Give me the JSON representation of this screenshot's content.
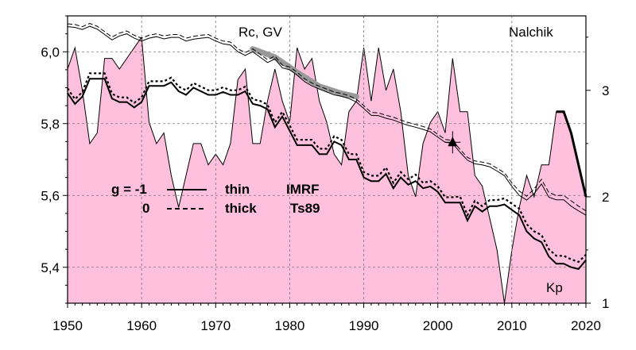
{
  "chart_data": {
    "type": "line",
    "annotations": {
      "station": "Nalchik",
      "rc_label": "Rc, GV",
      "kp_label": "Kp"
    },
    "legend": {
      "g_row1": "g  = -1",
      "g_row2": "0",
      "thin": "thin",
      "thick": "thick",
      "imrf": "IMRF",
      "ts89": "Ts89"
    },
    "x_axis": {
      "range": [
        1950,
        2020
      ],
      "ticks": [
        1950,
        1960,
        1970,
        1980,
        1990,
        2000,
        2010,
        2020
      ],
      "tick_labels": [
        "1950",
        "1960",
        "1970",
        "1980",
        "1990",
        "2000",
        "2010",
        "2020"
      ]
    },
    "y_axis_left": {
      "range": [
        5.3,
        6.1
      ],
      "ticks": [
        5.4,
        5.6,
        5.8,
        6.0
      ],
      "tick_labels": [
        "5,4",
        "5,6",
        "5,8",
        "6,0"
      ]
    },
    "y_axis_right": {
      "range": [
        1,
        3.7
      ],
      "ticks": [
        1,
        2,
        3
      ],
      "tick_labels": [
        "1",
        "2",
        "3"
      ]
    },
    "grid": true,
    "colors": {
      "kp_fill": "#ffc0dd",
      "kp_band": "#999999"
    },
    "series": [
      {
        "x": [
          1950,
          1951,
          1952,
          1953,
          1954,
          1955,
          1956,
          1957,
          1958,
          1959,
          1960,
          1961,
          1962,
          1963,
          1964,
          1965,
          1966,
          1967,
          1968,
          1969,
          1970,
          1971,
          1972,
          1973,
          1974,
          1975,
          1976,
          1977,
          1978,
          1979,
          1980,
          1981,
          1982,
          1983,
          1984,
          1985,
          1986,
          1987,
          1988,
          1989,
          1990,
          1991,
          1992,
          1993,
          1994,
          1995,
          1996,
          1997,
          1998,
          1999,
          2000,
          2001,
          2002,
          2003,
          2004,
          2005,
          2006,
          2007,
          2008,
          2009,
          2010,
          2011,
          2012,
          2013,
          2014,
          2015,
          2016,
          2017,
          2018,
          2019,
          2020
        ],
        "y": [
          6.07,
          6.068,
          6.062,
          6.071,
          6.063,
          6.048,
          6.033,
          6.044,
          6.05,
          6.038,
          6.03,
          6.038,
          6.042,
          6.036,
          6.04,
          6.04,
          6.03,
          6.035,
          6.038,
          6.04,
          6.03,
          6.022,
          6.019,
          6.0,
          5.99,
          6.0,
          5.985,
          5.97,
          5.98,
          5.955,
          5.95,
          5.935,
          5.917,
          5.905,
          5.896,
          5.888,
          5.88,
          5.876,
          5.87,
          5.86,
          5.842,
          5.823,
          5.822,
          5.815,
          5.81,
          5.802,
          5.795,
          5.79,
          5.784,
          5.777,
          5.762,
          5.748,
          5.745,
          5.72,
          5.698,
          5.688,
          5.685,
          5.68,
          5.668,
          5.655,
          5.625,
          5.6,
          5.587,
          5.605,
          5.632,
          5.595,
          5.588,
          5.588,
          5.57,
          5.557,
          5.545
        ]
      },
      {
        "x": [
          1950,
          1951,
          1952,
          1953,
          1954,
          1955,
          1956,
          1957,
          1958,
          1959,
          1960,
          1961,
          1962,
          1963,
          1964,
          1965,
          1966,
          1967,
          1968,
          1969,
          1970,
          1971,
          1972,
          1973,
          1974,
          1975,
          1976,
          1977,
          1978,
          1979,
          1980,
          1981,
          1982,
          1983,
          1984,
          1985,
          1986,
          1987,
          1988,
          1989,
          1990,
          1991,
          1992,
          1993,
          1994,
          1995,
          1996,
          1997,
          1998,
          1999,
          2000,
          2001,
          2002,
          2003,
          2004,
          2005,
          2006,
          2007,
          2008,
          2009,
          2010,
          2011,
          2012,
          2013,
          2014,
          2015,
          2016,
          2017,
          2018,
          2019,
          2020
        ],
        "y": [
          6.078,
          6.076,
          6.07,
          6.079,
          6.071,
          6.056,
          6.041,
          6.052,
          6.058,
          6.046,
          6.038,
          6.046,
          6.05,
          6.044,
          6.048,
          6.048,
          6.038,
          6.043,
          6.046,
          6.048,
          6.038,
          6.03,
          6.027,
          6.008,
          5.998,
          6.008,
          5.993,
          5.978,
          5.988,
          5.963,
          5.958,
          5.943,
          5.925,
          5.913,
          5.904,
          5.896,
          5.888,
          5.884,
          5.878,
          5.868,
          5.85,
          5.831,
          5.83,
          5.823,
          5.818,
          5.81,
          5.803,
          5.798,
          5.792,
          5.785,
          5.77,
          5.756,
          5.753,
          5.728,
          5.706,
          5.696,
          5.693,
          5.688,
          5.676,
          5.663,
          5.635,
          5.612,
          5.598,
          5.618,
          5.645,
          5.608,
          5.6,
          5.6,
          5.585,
          5.57,
          5.557
        ]
      },
      {
        "x": [
          1950,
          1951,
          1952,
          1953,
          1954,
          1955,
          1956,
          1957,
          1958,
          1959,
          1960,
          1961,
          1962,
          1963,
          1964,
          1965,
          1966,
          1967,
          1968,
          1969,
          1970,
          1971,
          1972,
          1973,
          1974,
          1975,
          1976,
          1977,
          1978,
          1979,
          1980,
          1981,
          1982,
          1983,
          1984,
          1985,
          1986,
          1987,
          1988,
          1989,
          1990,
          1991,
          1992,
          1993,
          1994,
          1995,
          1996,
          1997,
          1998,
          1999,
          2000,
          2001,
          2002,
          2003,
          2004,
          2005,
          2006,
          2007,
          2008,
          2009,
          2010,
          2011,
          2012,
          2013,
          2014,
          2015,
          2016,
          2017,
          2018,
          2019,
          2020
        ],
        "y": [
          5.885,
          5.855,
          5.875,
          5.925,
          5.925,
          5.925,
          5.87,
          5.86,
          5.86,
          5.845,
          5.86,
          5.905,
          5.905,
          5.905,
          5.915,
          5.89,
          5.88,
          5.9,
          5.89,
          5.88,
          5.88,
          5.888,
          5.88,
          5.88,
          5.89,
          5.855,
          5.85,
          5.84,
          5.79,
          5.82,
          5.78,
          5.74,
          5.74,
          5.74,
          5.715,
          5.715,
          5.75,
          5.74,
          5.7,
          5.7,
          5.65,
          5.64,
          5.64,
          5.66,
          5.62,
          5.65,
          5.63,
          5.64,
          5.62,
          5.625,
          5.61,
          5.58,
          5.58,
          5.58,
          5.53,
          5.57,
          5.555,
          5.57,
          5.57,
          5.575,
          5.56,
          5.545,
          5.5,
          5.48,
          5.47,
          5.43,
          5.41,
          5.41,
          5.4,
          5.395,
          5.42
        ]
      },
      {
        "x": [
          1950,
          1951,
          1952,
          1953,
          1954,
          1955,
          1956,
          1957,
          1958,
          1959,
          1960,
          1961,
          1962,
          1963,
          1964,
          1965,
          1966,
          1967,
          1968,
          1969,
          1970,
          1971,
          1972,
          1973,
          1974,
          1975,
          1976,
          1977,
          1978,
          1979,
          1980,
          1981,
          1982,
          1983,
          1984,
          1985,
          1986,
          1987,
          1988,
          1989,
          1990,
          1991,
          1992,
          1993,
          1994,
          1995,
          1996,
          1997,
          1998,
          1999,
          2000,
          2001,
          2002,
          2003,
          2004,
          2005,
          2006,
          2007,
          2008,
          2009,
          2010,
          2011,
          2012,
          2013,
          2014,
          2015,
          2016,
          2017,
          2018,
          2019,
          2020
        ],
        "y": [
          5.898,
          5.868,
          5.888,
          5.94,
          5.94,
          5.94,
          5.883,
          5.873,
          5.873,
          5.858,
          5.873,
          5.918,
          5.918,
          5.918,
          5.928,
          5.903,
          5.893,
          5.913,
          5.903,
          5.893,
          5.893,
          5.901,
          5.893,
          5.893,
          5.903,
          5.868,
          5.863,
          5.853,
          5.803,
          5.833,
          5.795,
          5.755,
          5.755,
          5.755,
          5.73,
          5.73,
          5.765,
          5.755,
          5.715,
          5.715,
          5.665,
          5.655,
          5.655,
          5.678,
          5.635,
          5.665,
          5.645,
          5.658,
          5.635,
          5.64,
          5.625,
          5.595,
          5.595,
          5.597,
          5.545,
          5.585,
          5.57,
          5.587,
          5.587,
          5.592,
          5.577,
          5.563,
          5.52,
          5.5,
          5.49,
          5.45,
          5.432,
          5.432,
          5.422,
          5.415,
          5.435
        ]
      },
      {
        "x": [
          1950,
          1951,
          1952,
          1953,
          1954,
          1955,
          1956,
          1957,
          1958,
          1959,
          1960,
          1961,
          1962,
          1963,
          1964,
          1965,
          1966,
          1967,
          1968,
          1969,
          1970,
          1971,
          1972,
          1973,
          1974,
          1975,
          1976,
          1977,
          1978,
          1979,
          1980,
          1981,
          1982,
          1983,
          1984,
          1985,
          1986,
          1987,
          1988,
          1989,
          1990,
          1991,
          1992,
          1993,
          1994,
          1995,
          1996,
          1997,
          1998,
          1999,
          2000,
          2001,
          2002,
          2003,
          2004,
          2005,
          2006,
          2007,
          2008,
          2009,
          2010,
          2011,
          2012,
          2013,
          2014,
          2015,
          2016,
          2017,
          2018,
          2019,
          2020
        ],
        "y": [
          3.2,
          3.4,
          3.0,
          2.5,
          2.6,
          3.3,
          3.3,
          3.2,
          3.3,
          3.4,
          3.5,
          2.7,
          2.5,
          2.6,
          2.2,
          1.9,
          2.2,
          2.5,
          2.5,
          2.3,
          2.4,
          2.3,
          2.5,
          3.1,
          3.2,
          2.5,
          2.5,
          2.9,
          3.2,
          2.9,
          2.7,
          3.4,
          3.2,
          3.3,
          2.9,
          2.7,
          2.4,
          2.3,
          2.8,
          2.9,
          3.4,
          2.9,
          3.4,
          3.0,
          3.2,
          2.8,
          2.2,
          2.0,
          2.5,
          2.7,
          2.8,
          2.6,
          3.3,
          2.8,
          2.8,
          2.2,
          2.1,
          1.8,
          1.5,
          1.0,
          1.5,
          1.9,
          2.2,
          2.0,
          2.3,
          2.3,
          2.8,
          2.8,
          2.6,
          2.3,
          2.0
        ]
      }
    ],
    "kp_thick_segment": {
      "x": [
        2016,
        2017,
        2018,
        2019,
        2020
      ],
      "y": [
        2.8,
        2.8,
        2.6,
        2.3,
        2.0
      ]
    },
    "grey_band": {
      "x": [
        1975,
        1978,
        1981,
        1984,
        1987,
        1989
      ],
      "y": [
        6.008,
        5.985,
        5.943,
        5.904,
        5.884,
        5.875
      ]
    },
    "marker": {
      "x": 2002,
      "y": 5.748,
      "shape": "triangle"
    }
  }
}
